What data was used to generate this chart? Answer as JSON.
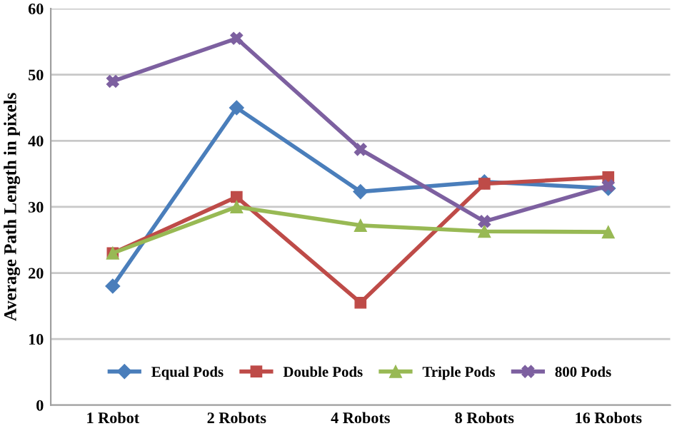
{
  "chart_data": {
    "type": "line",
    "ylabel": "Average Path Length in pixels",
    "categories": [
      "1 Robot",
      "2 Robots",
      "4 Robots",
      "8 Robots",
      "16 Robots"
    ],
    "series": [
      {
        "name": "Equal Pods",
        "color": "#4a7ebb",
        "marker": "diamond",
        "values": [
          18,
          45,
          32.3,
          33.8,
          32.8
        ]
      },
      {
        "name": "Double Pods",
        "color": "#be4b48",
        "marker": "square",
        "values": [
          23,
          31.5,
          15.5,
          33.5,
          34.5
        ]
      },
      {
        "name": "Triple Pods",
        "color": "#98b954",
        "marker": "triangle",
        "values": [
          23,
          30,
          27.2,
          26.3,
          26.2
        ]
      },
      {
        "name": "800 Pods",
        "color": "#7d60a0",
        "marker": "cross",
        "values": [
          49,
          55.5,
          38.7,
          27.8,
          33.2
        ]
      }
    ],
    "ylim": [
      0,
      60
    ],
    "yticks": [
      0,
      10,
      20,
      30,
      40,
      50,
      60
    ],
    "grid": "y",
    "legend": "bottom",
    "line_style": "solid"
  }
}
